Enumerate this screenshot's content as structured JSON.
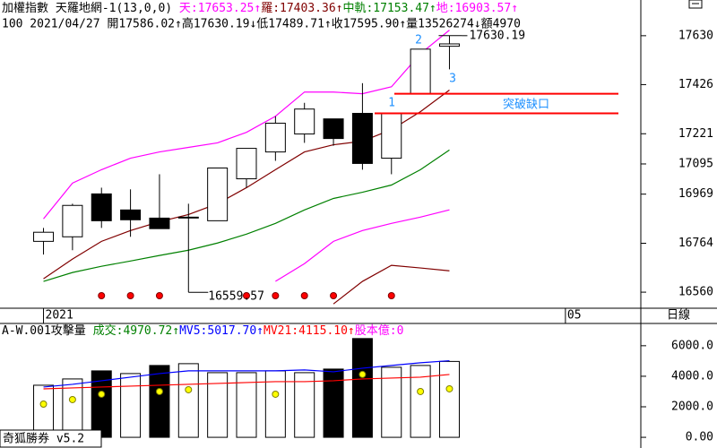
{
  "header": {
    "line1": [
      {
        "text": "加權指數 天羅地網-1(13,0,0) ",
        "color": "#000000"
      },
      {
        "text": "天:17653.25↑",
        "color": "#ff00ff"
      },
      {
        "text": "羅:17403.36↑",
        "color": "#800000"
      },
      {
        "text": "中軌:17153.47↑",
        "color": "#008000"
      },
      {
        "text": "地:16903.57↑",
        "color": "#ff00ff"
      }
    ],
    "line2": "100 2021/04/27 開17586.02↑高17630.19↓低17489.71↑收17595.90↑量13526274↓額4970"
  },
  "period": "日線",
  "footer": "奇狐勝券 v5.2",
  "chart_data": [
    {
      "type": "candlestick",
      "x": [
        0,
        1,
        2,
        3,
        4,
        5,
        6,
        7,
        8,
        9,
        10,
        11,
        12,
        13,
        14
      ],
      "open": [
        16772,
        16791,
        16970,
        16903,
        16869,
        16873,
        16858,
        17033,
        17145,
        17220,
        17283,
        17306,
        17119,
        17388,
        17586.02
      ],
      "high": [
        16828,
        16929,
        16996,
        16989,
        17052,
        16929,
        17078,
        17160,
        17294,
        17350,
        17283,
        17432,
        17306,
        17574,
        17630.19
      ],
      "low": [
        16717,
        16735,
        16828,
        16791,
        16825,
        16559.57,
        16858,
        16996,
        17108,
        17183,
        17171,
        17071,
        17052,
        17388,
        17489.71
      ],
      "close": [
        16810,
        16922,
        16858,
        16862,
        16825,
        16873,
        17078,
        17160,
        17265,
        17324,
        17201,
        17097,
        17306,
        17574,
        17595.9
      ],
      "series": [
        {
          "color": "#ff00ff",
          "values": [
            16866,
            17015,
            17071,
            17119,
            17145,
            17164,
            17183,
            17227,
            17294,
            17395,
            17395,
            17388,
            17417,
            17555,
            17653.25
          ]
        },
        {
          "color": "#800000",
          "values": [
            16616,
            16698,
            16772,
            16817,
            16854,
            16884,
            16929,
            16996,
            17071,
            17145,
            17175,
            17190,
            17238,
            17313,
            17403.36
          ]
        },
        {
          "color": "#008000",
          "values": [
            16605,
            16642,
            16668,
            16690,
            16713,
            16735,
            16765,
            16802,
            16847,
            16903,
            16951,
            16977,
            17007,
            17071,
            17153.47
          ]
        },
        {
          "color": "#ff00ff",
          "values": [
            null,
            null,
            null,
            null,
            null,
            null,
            null,
            null,
            16605,
            16679,
            16772,
            16817,
            16847,
            16873,
            16903.57
          ]
        },
        {
          "color": "#800000",
          "values": [
            null,
            null,
            null,
            null,
            null,
            null,
            null,
            null,
            null,
            null,
            16511,
            16605,
            16672,
            16661,
            16649
          ]
        }
      ],
      "signals": [
        false,
        false,
        true,
        true,
        true,
        false,
        false,
        true,
        true,
        true,
        true,
        false,
        true,
        false,
        false
      ],
      "signal_color": "#ff0000",
      "gap_lines": [
        17388,
        17306
      ],
      "gap_color": "#ff0000",
      "annotations": [
        "2",
        "3",
        "1",
        "突破缺口"
      ],
      "annotation_color": "#1e90ff",
      "high_label": {
        "value": 17630.19,
        "label": "17630.19"
      },
      "low_label": {
        "value": 16559.57,
        "label": "16559.57"
      },
      "xlim": [
        -1.5,
        20.6
      ],
      "xticks": [
        {
          "value": 0,
          "label": "2021"
        },
        {
          "value": 18,
          "label": "05"
        }
      ],
      "ylim": [
        16493,
        17779
      ],
      "yticks": [
        17630,
        17426,
        17221,
        17095,
        16969,
        16764,
        16560
      ]
    },
    {
      "type": "bar",
      "title": [
        {
          "text": "A-W.001攻擊量 ",
          "color": "#000000"
        },
        {
          "text": "成交:4970.72↑",
          "color": "#008000"
        },
        {
          "text": "MV5:5017.70↑",
          "color": "#0000ff"
        },
        {
          "text": "MV21:4115.10↑",
          "color": "#ff0000"
        },
        {
          "text": "股本億:0",
          "color": "#ff00ff"
        }
      ],
      "x": [
        0,
        1,
        2,
        3,
        4,
        5,
        6,
        7,
        8,
        9,
        10,
        11,
        12,
        13,
        14
      ],
      "values": [
        3412,
        3824,
        4353,
        4176,
        4706,
        4824,
        4235,
        4235,
        4353,
        4235,
        4471,
        6471,
        4588,
        4706,
        4970.72
      ],
      "bar_colors": [
        "#ffffff",
        "#ffffff",
        "#000000",
        "#ffffff",
        "#000000",
        "#ffffff",
        "#ffffff",
        "#ffffff",
        "#ffffff",
        "#ffffff",
        "#000000",
        "#000000",
        "#ffffff",
        "#ffffff",
        "#ffffff"
      ],
      "dots": {
        "color": "#ffff00",
        "values": [
          2176,
          2471,
          2824,
          null,
          3000,
          3118,
          null,
          null,
          2824,
          null,
          null,
          4118,
          null,
          3000,
          3176
        ]
      },
      "series": [
        {
          "color": "#0000ff",
          "values": [
            3294,
            3471,
            3706,
            3941,
            4176,
            4353,
            4353,
            4353,
            4353,
            4412,
            4294,
            4529,
            4706,
            4882,
            5017.7
          ]
        },
        {
          "color": "#ff0000",
          "values": [
            3176,
            3235,
            3294,
            3353,
            3412,
            3471,
            3529,
            3588,
            3647,
            3647,
            3706,
            3824,
            3882,
            3941,
            4115.1
          ]
        }
      ],
      "xlim": [
        -1.5,
        20.6
      ],
      "ylim": [
        -700,
        7400
      ],
      "yticks": [
        {
          "value": 6000,
          "label": "6000.0"
        },
        {
          "value": 4000,
          "label": "4000.0"
        },
        {
          "value": 2000,
          "label": "2000.0"
        },
        {
          "value": 0,
          "label": "0.00"
        }
      ]
    }
  ]
}
